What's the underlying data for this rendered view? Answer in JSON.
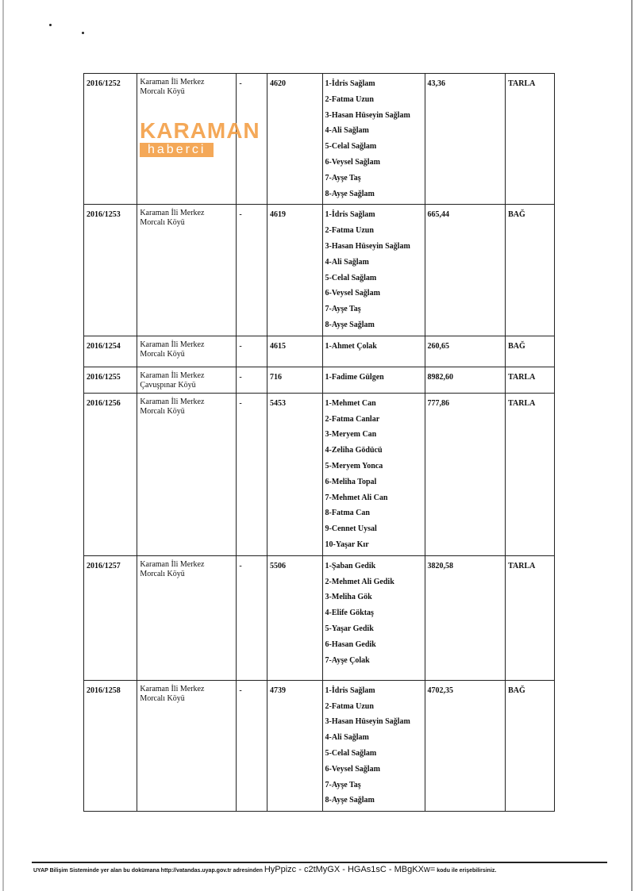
{
  "rows": [
    {
      "no": "2016/1252",
      "loc1": "Karaman İli Merkez",
      "loc2": "Morcalı Köyü",
      "ada": "-",
      "parsel": "4620",
      "owners": [
        "1-İdris Sağlam",
        "2-Fatma Uzun",
        "3-Hasan Hüseyin Sağlam",
        "4-Ali Sağlam",
        "5-Celal Sağlam",
        "6-Veysel Sağlam",
        "7-Ayşe Taş",
        "8-Ayşe Sağlam"
      ],
      "area": "43,36",
      "type": "TARLA"
    },
    {
      "no": "2016/1253",
      "loc1": "Karaman İli Merkez",
      "loc2": "Morcalı Köyü",
      "ada": "-",
      "parsel": "4619",
      "owners": [
        "1-İdris Sağlam",
        "2-Fatma Uzun",
        "3-Hasan Hüseyin Sağlam",
        "4-Ali Sağlam",
        "5-Celal Sağlam",
        "6-Veysel Sağlam",
        "7-Ayşe Taş",
        "8-Ayşe Sağlam"
      ],
      "area": "665,44",
      "type": "BAĞ"
    },
    {
      "no": "2016/1254",
      "loc1": "Karaman İli Merkez",
      "loc2": "Morcalı Köyü",
      "ada": "-",
      "parsel": "4615",
      "owners": [
        "1-Ahmet Çolak"
      ],
      "area": "260,65",
      "type": "BAĞ"
    },
    {
      "no": "2016/1255",
      "loc1": "Karaman İli Merkez",
      "loc2": "Çavuşpınar Köyü",
      "ada": "-",
      "parsel": "716",
      "owners": [
        "1-Fadime Gülgen"
      ],
      "area": "8982,60",
      "type": "TARLA"
    },
    {
      "no": "2016/1256",
      "loc1": "Karaman İli Merkez",
      "loc2": "Morcalı Köyü",
      "ada": "-",
      "parsel": "5453",
      "owners": [
        "1-Mehmet Can",
        "2-Fatma Canlar",
        "3-Meryem Can",
        "4-Zeliha Gödücü",
        "5-Meryem Yonca",
        "6-Meliha Topal",
        "7-Mehmet Ali Can",
        "8-Fatma Can",
        "9-Cennet Uysal",
        "10-Yaşar Kır"
      ],
      "area": "777,86",
      "type": "TARLA"
    },
    {
      "no": "2016/1257",
      "loc1": "Karaman İli Merkez",
      "loc2": "Morcalı Köyü",
      "ada": "-",
      "parsel": "5506",
      "owners": [
        "1-Şaban Gedik",
        "2-Mehmet Ali Gedik",
        "3-Meliha Gök",
        "4-Elife Göktaş",
        "5-Yaşar Gedik",
        "6-Hasan Gedik",
        "7-Ayşe Çolak"
      ],
      "area": "3820,58",
      "type": "TARLA"
    },
    {
      "no": "2016/1258",
      "loc1": "Karaman İli Merkez",
      "loc2": "Morcalı Köyü",
      "ada": "-",
      "parsel": "4739",
      "owners": [
        "1-İdris Sağlam",
        "2-Fatma Uzun",
        "3-Hasan Hüseyin Sağlam",
        "4-Ali Sağlam",
        "5-Celal Sağlam",
        "6-Veysel Sağlam",
        "7-Ayşe Taş",
        "8-Ayşe Sağlam"
      ],
      "area": "4702,35",
      "type": "BAĞ"
    }
  ],
  "watermark": {
    "line1": "KARAMAN",
    "line2": "haberci",
    "color": "#f39a3c"
  },
  "footer": {
    "text": "UYAP Bilişim Sisteminde yer alan bu dokümana http://vatandas.uyap.gov.tr adresinden",
    "code": "HyPpizc - c2tMyGX - HGAs1sC - MBgKXw=",
    "suffix": "kodu ile erişebilirsiniz."
  }
}
